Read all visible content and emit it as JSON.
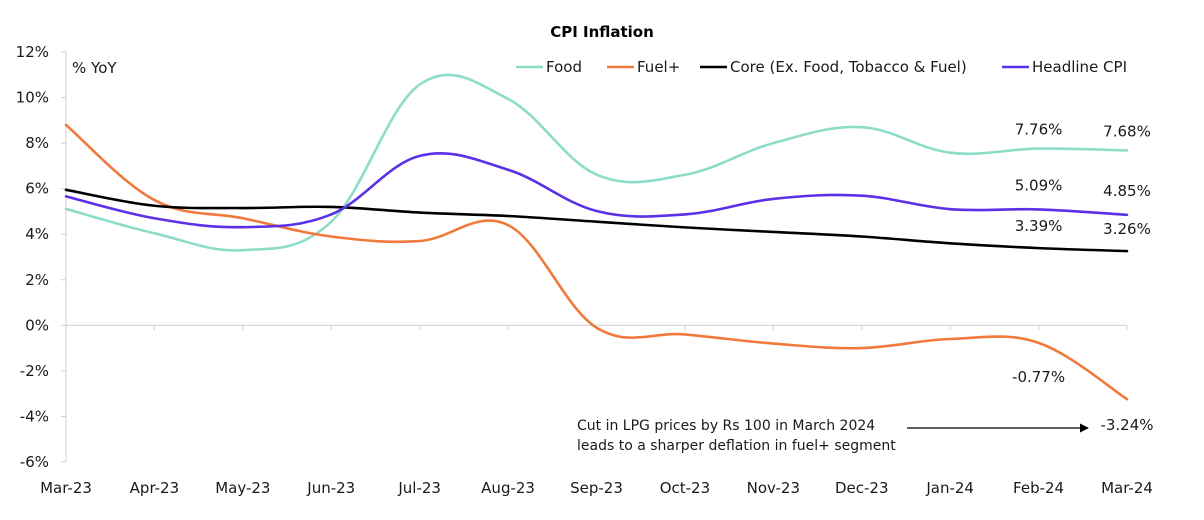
{
  "chart_data": {
    "type": "line",
    "title": "CPI Inflation",
    "unit_label": "% YoY",
    "xlabel": "",
    "ylabel": "",
    "categories": [
      "Mar-23",
      "Apr-23",
      "May-23",
      "Jun-23",
      "Jul-23",
      "Aug-23",
      "Sep-23",
      "Oct-23",
      "Nov-23",
      "Dec-23",
      "Jan-24",
      "Feb-24",
      "Mar-24"
    ],
    "ylim": [
      -6,
      12
    ],
    "yticks": [
      12,
      10,
      8,
      6,
      4,
      2,
      0,
      -2,
      -4,
      -6
    ],
    "ytick_labels": [
      "12%",
      "10%",
      "8%",
      "6%",
      "4%",
      "2%",
      "0%",
      "-2%",
      "-4%",
      "-6%"
    ],
    "grid": false,
    "legend_position": "top-right",
    "series": [
      {
        "name": "Food",
        "color": "#8ddcc9",
        "values": [
          5.11,
          4.04,
          3.3,
          4.55,
          10.57,
          9.94,
          6.62,
          6.61,
          8.0,
          8.7,
          7.58,
          7.76,
          7.68
        ]
      },
      {
        "name": "Fuel+",
        "color": "#f07a3c",
        "values": [
          8.8,
          5.5,
          4.7,
          3.9,
          3.7,
          4.4,
          -0.1,
          -0.4,
          -0.8,
          -1.0,
          -0.6,
          -0.77,
          -3.24
        ]
      },
      {
        "name": "Core (Ex. Food, Tobacco & Fuel)",
        "color": "#000000",
        "values": [
          5.95,
          5.25,
          5.15,
          5.2,
          4.95,
          4.8,
          4.55,
          4.3,
          4.1,
          3.9,
          3.6,
          3.39,
          3.26
        ]
      },
      {
        "name": "Headline CPI",
        "color": "#5b30e6",
        "values": [
          5.66,
          4.7,
          4.31,
          4.87,
          7.44,
          6.83,
          5.02,
          4.87,
          5.55,
          5.69,
          5.1,
          5.09,
          4.85
        ]
      }
    ],
    "data_labels": [
      {
        "series": "Food",
        "index": 11,
        "text": "7.76%",
        "value": 7.76
      },
      {
        "series": "Food",
        "index": 12,
        "text": "7.68%",
        "value": 7.68
      },
      {
        "series": "Headline CPI",
        "index": 11,
        "text": "5.09%",
        "value": 5.09
      },
      {
        "series": "Headline CPI",
        "index": 12,
        "text": "4.85%",
        "value": 4.85
      },
      {
        "series": "Core (Ex. Food, Tobacco & Fuel)",
        "index": 11,
        "text": "3.39%",
        "value": 3.39
      },
      {
        "series": "Core (Ex. Food, Tobacco & Fuel)",
        "index": 12,
        "text": "3.26%",
        "value": 3.26
      },
      {
        "series": "Fuel+",
        "index": 11,
        "text": "-0.77%",
        "value": -0.77
      },
      {
        "series": "Fuel+",
        "index": 12,
        "text": "-3.24%",
        "value": -3.24
      }
    ],
    "annotation": {
      "lines": [
        "Cut in LPG prices by Rs 100 in March 2024",
        "leads to a sharper deflation in fuel+ segment"
      ],
      "points_to": "Fuel+ Mar-24"
    }
  }
}
